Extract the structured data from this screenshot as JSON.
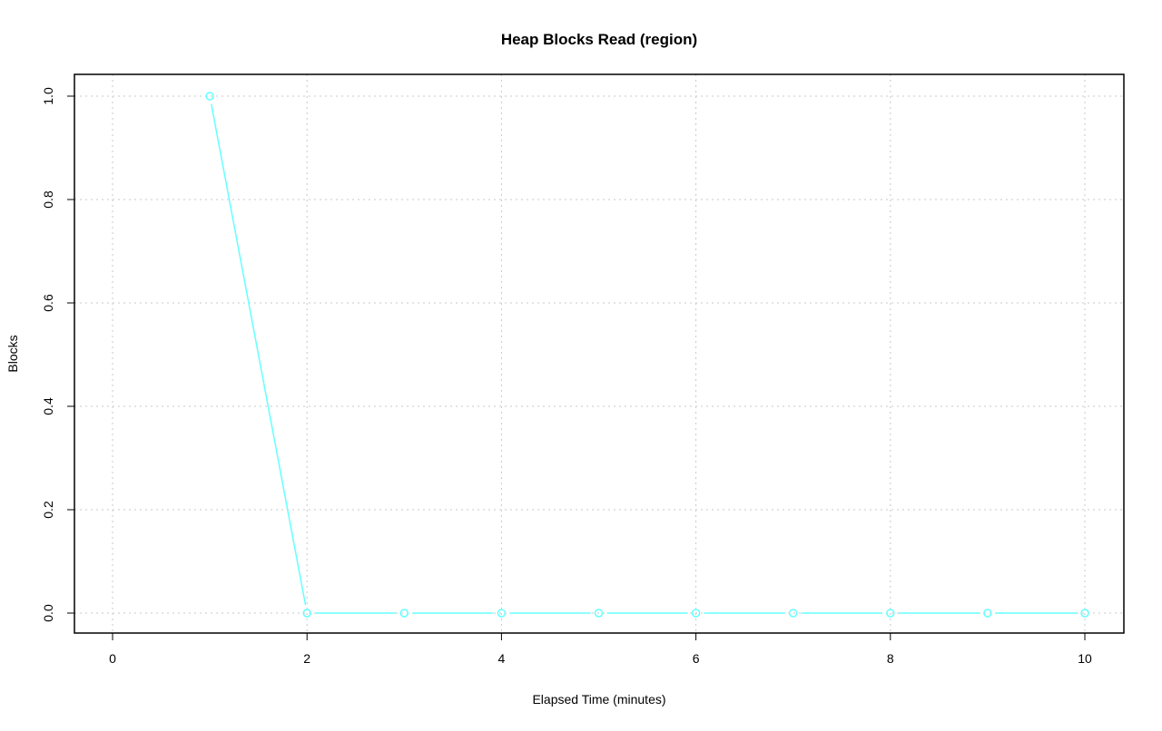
{
  "chart_data": {
    "type": "line",
    "title": "Heap Blocks Read (region)",
    "xlabel": "Elapsed Time (minutes)",
    "ylabel": "Blocks",
    "xlim": [
      0,
      10
    ],
    "ylim": [
      0,
      1
    ],
    "x_ticks": [
      "0",
      "2",
      "4",
      "6",
      "8",
      "10"
    ],
    "y_ticks": [
      "0.0",
      "0.2",
      "0.4",
      "0.6",
      "0.8",
      "1.0"
    ],
    "grid": true,
    "line_style": "both points and lines",
    "series": [
      {
        "color": "#66ffff",
        "x": [
          1,
          2,
          3,
          4,
          5,
          6,
          7,
          8,
          9,
          10
        ],
        "y": [
          1,
          0,
          0,
          0,
          0,
          0,
          0,
          0,
          0,
          0
        ]
      }
    ]
  }
}
